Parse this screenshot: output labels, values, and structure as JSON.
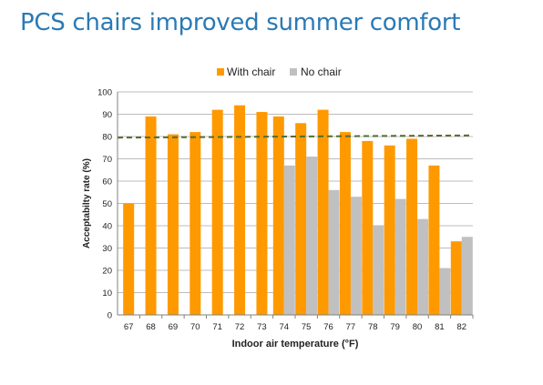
{
  "slide": {
    "title": "PCS chairs improved summer comfort"
  },
  "colors": {
    "with_chair": "#ff9900",
    "no_chair": "#c0c0c0",
    "threshold_line": "#556b2f",
    "grid": "#a6a6a6",
    "title": "#2a7ab5"
  },
  "chart_data": {
    "type": "bar",
    "title": "",
    "xlabel": "Indoor air temperature (°F)",
    "ylabel": "Acceptabilty rate (%)",
    "ylim": [
      0,
      100
    ],
    "yticks": [
      0,
      10,
      20,
      30,
      40,
      50,
      60,
      70,
      80,
      90,
      100
    ],
    "grid": true,
    "legend_position": "top-center",
    "categories": [
      "67",
      "68",
      "69",
      "70",
      "71",
      "72",
      "73",
      "74",
      "75",
      "76",
      "77",
      "78",
      "79",
      "80",
      "81",
      "82"
    ],
    "series": [
      {
        "name": "With chair",
        "values": [
          50,
          89,
          81,
          82,
          92,
          94,
          91,
          89,
          86,
          92,
          82,
          78,
          76,
          79,
          67,
          33
        ]
      },
      {
        "name": "No chair",
        "values": [
          null,
          null,
          null,
          null,
          null,
          null,
          null,
          67,
          71,
          56,
          53,
          40,
          52,
          43,
          21,
          35
        ]
      }
    ],
    "reference_line": {
      "style": "dashed",
      "y_start": 79.5,
      "y_end": 80.5
    }
  }
}
